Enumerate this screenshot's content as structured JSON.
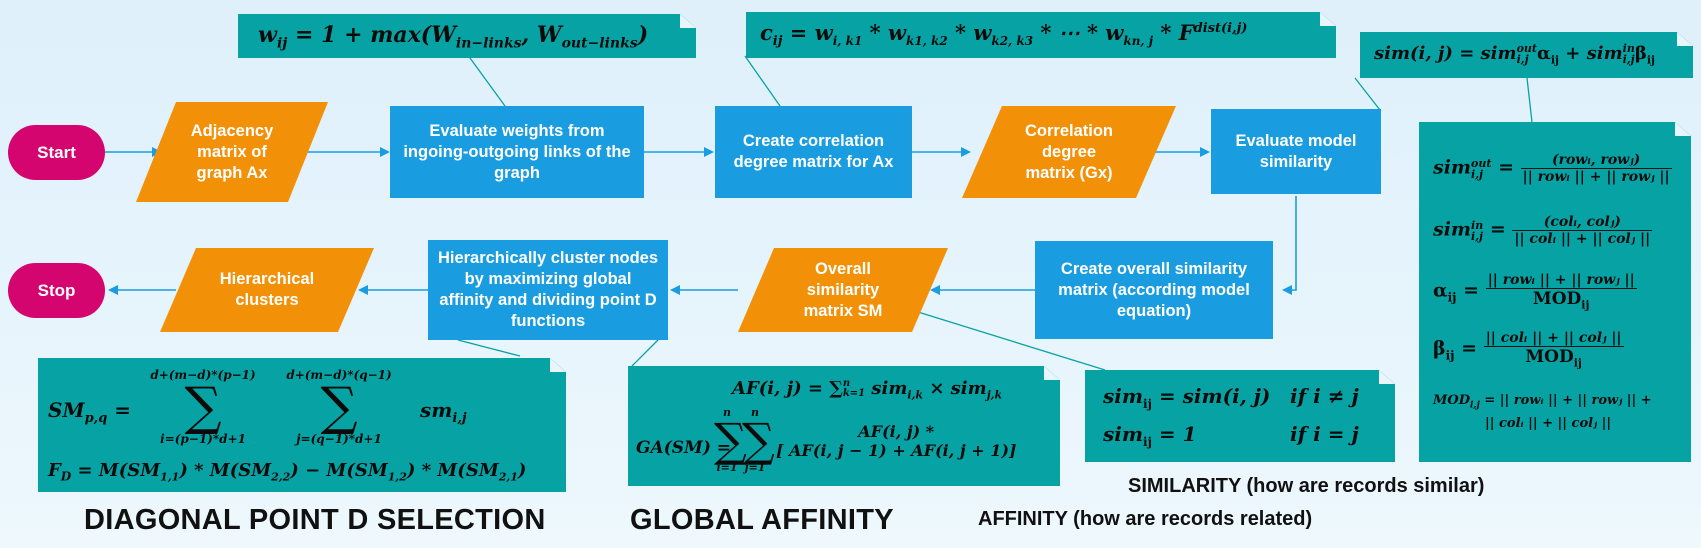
{
  "nodes": {
    "start": "Start",
    "stop": "Stop",
    "adjacency": "Adjacency matrix of graph Ax",
    "evaluate_weights": "Evaluate weights from ingoing-outgoing links of the graph",
    "correlation_matrix": "Create correlation degree matrix for Ax",
    "correlation_degree": "Correlation degree matrix (Gx)",
    "evaluate_similarity": "Evaluate model similarity",
    "overall_matrix": "Create overall similarity matrix (according model equation)",
    "overall_sm": "Overall similarity matrix SM",
    "cluster_nodes": "Hierarchically cluster nodes by maximizing global affinity and dividing point D functions",
    "hier_clusters": "Hierarchical clusters"
  },
  "formulas": {
    "weight": {
      "lhs": "w",
      "lhs_sub": "ij",
      "rhs_a": " = 1 + max(W",
      "sub_in": "in−links",
      "comma": ", W",
      "sub_out": "out−links",
      "close": ")"
    },
    "correlation": {
      "text": "c",
      "sub": "ij",
      "rest": " = w",
      "s1": "i, k1",
      "m1": " * w",
      "s2": "k1, k2",
      "m2": " * w",
      "s3": "k2, k3",
      "m3": " * ⋯ * w",
      "s4": "kn, j",
      "m4": " * F",
      "sup": "dist(i,j)"
    },
    "sim_model": {
      "lhs": "sim(i, j) = sim",
      "sup1": "out",
      "sub1": "i,j",
      "a": "α",
      "a_sub": "ij",
      "plus": " + sim",
      "sup2": "in",
      "sub2": "i,j",
      "b": "β",
      "b_sub": "ij"
    },
    "sim_out": {
      "lhs": "sim",
      "sup": "out",
      "sub": "i,j",
      "num": "(rowᵢ, rowⱼ)",
      "den": "|| rowᵢ || + || rowⱼ ||"
    },
    "sim_in": {
      "lhs": "sim",
      "sup": "in",
      "sub": "i,j",
      "num": "(colᵢ, colⱼ)",
      "den": "|| colᵢ || + || colⱼ ||"
    },
    "alpha": {
      "lhs": "α",
      "sub": "ij",
      "num": "|| rowᵢ || + || rowⱼ ||",
      "den": "MOD",
      "den_sub": "ij"
    },
    "beta": {
      "lhs": "β",
      "sub": "ij",
      "num": "|| colᵢ || + || colⱼ ||",
      "den": "MOD",
      "den_sub": "ij"
    },
    "mod": {
      "line1": "MOD",
      "sub": "i,j",
      "rest1": " = || rowᵢ || + || rowⱼ || +",
      "line2": "|| colᵢ || + || colⱼ ||"
    },
    "sim_cases": {
      "l1a": "sim",
      "l1sub": "ij",
      "l1b": " = sim(i, j)",
      "l1c": "if i ≠ j",
      "l2a": "sim",
      "l2sub": "ij",
      "l2b": " = 1",
      "l2c": "if i = j"
    },
    "af": {
      "lhs": "AF(i, j) = ∑",
      "sub": "k=1",
      "sup": "n",
      "rest": " sim",
      "s1": "i,k",
      "x": " × sim",
      "s2": "j,k"
    },
    "ga": {
      "lhs": "GA(SM) = ",
      "sum": "∑",
      "sum_top": "n",
      "sum_bot1": "i=1",
      "sum_bot2": "j=1",
      "num": "AF(i, j) *",
      "den": "[ AF(i, j − 1) + AF(i, j + 1)]"
    },
    "sm": {
      "lhs": "SM",
      "lhs_sub": "p,q",
      "eq": " = ",
      "sum": "∑",
      "top1": "d+(m−d)*(p−1)",
      "bot1": "i=(p−1)*d+1",
      "top2": "d+(m−d)*(q−1)",
      "bot2": "j=(q−1)*d+1",
      "term": "sm",
      "term_sub": "i,j"
    },
    "fd": {
      "text": "F",
      "sub": "D",
      "rest": " = M(SM",
      "a": "1,1",
      "b": ") * M(SM",
      "c": "2,2",
      "d": ") − M(SM",
      "e": "1,2",
      "f": ") * M(SM",
      "g": "2,1",
      "h": ")"
    }
  },
  "captions": {
    "diagonal": "DIAGONAL POINT D SELECTION",
    "global": "GLOBAL AFFINITY",
    "similarity": "SIMILARITY (how are records similar)",
    "affinity": "AFFINITY (how are records related)"
  },
  "colors": {
    "terminal": "#d4056e",
    "process": "#1a9de0",
    "io": "#f29108",
    "note": "#07a3a4",
    "connector": "#1a9de0",
    "callout": "#07a3a4"
  }
}
